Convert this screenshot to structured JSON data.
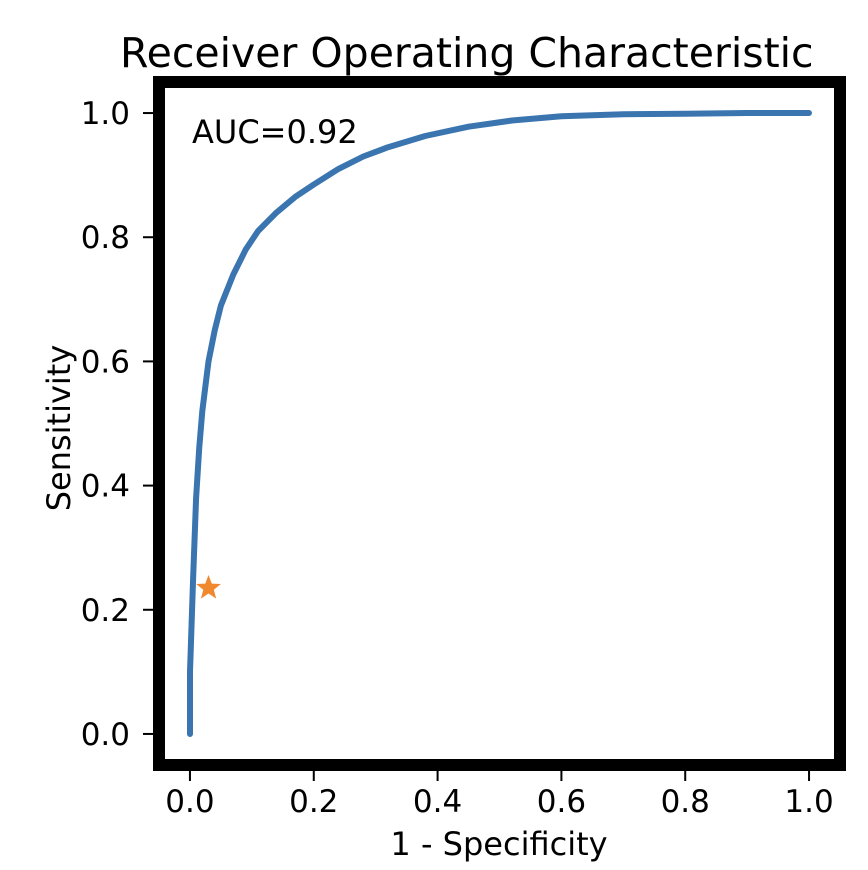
{
  "chart_data": {
    "type": "line",
    "title": "Receiver Operating Characteristic",
    "xlabel": "1 - Specificity",
    "ylabel": "Sensitivity",
    "xlim": [
      -0.05,
      1.05
    ],
    "ylim": [
      -0.05,
      1.05
    ],
    "xticks": [
      "0.0",
      "0.2",
      "0.4",
      "0.6",
      "0.8",
      "1.0"
    ],
    "yticks": [
      "0.0",
      "0.2",
      "0.4",
      "0.6",
      "0.8",
      "1.0"
    ],
    "grid": false,
    "annotation": "AUC=0.92",
    "series": [
      {
        "type": "line",
        "color": "#3a75b0",
        "x": [
          0.0,
          0.0,
          0.005,
          0.01,
          0.015,
          0.02,
          0.03,
          0.04,
          0.05,
          0.07,
          0.09,
          0.11,
          0.14,
          0.17,
          0.2,
          0.24,
          0.28,
          0.32,
          0.38,
          0.45,
          0.52,
          0.6,
          0.7,
          0.8,
          0.9,
          1.0
        ],
        "y": [
          0.0,
          0.1,
          0.25,
          0.38,
          0.46,
          0.52,
          0.6,
          0.65,
          0.69,
          0.74,
          0.78,
          0.81,
          0.84,
          0.865,
          0.885,
          0.91,
          0.93,
          0.945,
          0.963,
          0.978,
          0.988,
          0.995,
          0.998,
          0.999,
          1.0,
          1.0
        ]
      },
      {
        "type": "scatter",
        "marker": "star",
        "color": "#f0882e",
        "x": [
          0.03
        ],
        "y": [
          0.235
        ]
      }
    ]
  }
}
